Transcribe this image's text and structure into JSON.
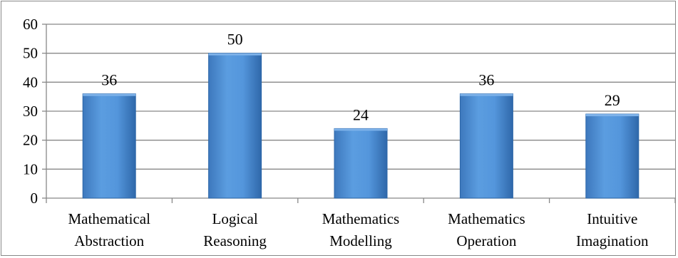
{
  "chart_data": {
    "type": "bar",
    "categories": [
      [
        "Mathematical",
        "Abstraction"
      ],
      [
        "Logical",
        "Reasoning"
      ],
      [
        "Mathematics",
        "Modelling"
      ],
      [
        "Mathematics",
        "Operation"
      ],
      [
        "Intuitive",
        "Imagination"
      ]
    ],
    "series": [
      {
        "values": [
          36,
          50,
          24,
          36,
          29
        ],
        "data_labels": [
          "36",
          "50",
          "24",
          "36",
          "29"
        ]
      }
    ],
    "ylim": [
      0,
      60
    ],
    "yticks": [
      0,
      10,
      20,
      30,
      40,
      50,
      60
    ],
    "ytick_labels": [
      "0",
      "10",
      "20",
      "30",
      "40",
      "50",
      "60"
    ],
    "grid": true,
    "legend": "none",
    "bar_color": "#4f8fd4",
    "bar_color_dark": "#2c66a8",
    "grid_color": "#888888"
  }
}
